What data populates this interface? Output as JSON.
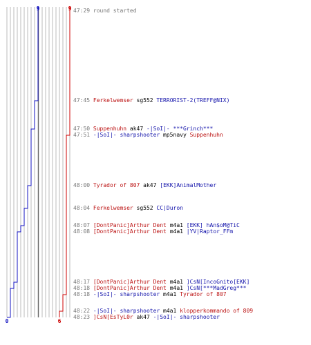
{
  "colors": {
    "ct": "#1010c0",
    "t": "#cc0000",
    "grid": "#bbbbbb",
    "time": "#777777"
  },
  "score": {
    "ct_start": 9,
    "t_start": 9,
    "ct_end": 0,
    "t_end": 6,
    "ct_top_label": "9",
    "t_top_label": "9",
    "ct_bottom_label": "0",
    "t_bottom_label": "6"
  },
  "events": [
    {
      "time": "47:29",
      "parts": [
        {
          "text": "round started",
          "color": "time"
        }
      ]
    },
    {
      "time": "47:45",
      "ct_after": 8,
      "t_after": 9,
      "parts": [
        {
          "text": "Ferkelwemser",
          "color": "red"
        },
        {
          "text": " sg552 ",
          "color": "plain"
        },
        {
          "text": "TERRORIST-2(TREFF@NIX)",
          "color": "blue"
        }
      ]
    },
    {
      "time": "47:50",
      "ct_after": 7,
      "t_after": 9,
      "parts": [
        {
          "text": "Suppenhuhn",
          "color": "red"
        },
        {
          "text": " ak47 ",
          "color": "plain"
        },
        {
          "text": "-|SoI|- ***Grinch***",
          "color": "blue"
        }
      ]
    },
    {
      "time": "47:51",
      "ct_after": 7,
      "t_after": 8,
      "parts": [
        {
          "text": "-|SoI|- sharpshooter",
          "color": "blue"
        },
        {
          "text": " mp5navy ",
          "color": "plain"
        },
        {
          "text": "Suppenhuhn",
          "color": "red"
        }
      ]
    },
    {
      "time": "48:00",
      "ct_after": 6,
      "t_after": 8,
      "parts": [
        {
          "text": "Tyrador of 807",
          "color": "red"
        },
        {
          "text": " ak47 ",
          "color": "plain"
        },
        {
          "text": "[EKK]AnimalMother",
          "color": "blue"
        }
      ]
    },
    {
      "time": "48:04",
      "ct_after": 5,
      "t_after": 8,
      "parts": [
        {
          "text": "Ferkelwemser",
          "color": "red"
        },
        {
          "text": " sg552 ",
          "color": "plain"
        },
        {
          "text": "CC|Duron",
          "color": "blue"
        }
      ]
    },
    {
      "time": "48:07",
      "ct_after": 4,
      "t_after": 8,
      "parts": [
        {
          "text": "[DontPanic]Arthur Dent",
          "color": "red"
        },
        {
          "text": " m4a1 ",
          "color": "plain"
        },
        {
          "text": "[EKK] hAn$oM@TiC",
          "color": "blue"
        }
      ]
    },
    {
      "time": "48:08",
      "ct_after": 3,
      "t_after": 8,
      "parts": [
        {
          "text": "[DontPanic]Arthur Dent",
          "color": "red"
        },
        {
          "text": " m4a1 ",
          "color": "plain"
        },
        {
          "text": "|YV|Raptor_FFm",
          "color": "blue"
        }
      ]
    },
    {
      "time": "48:17",
      "ct_after": 2,
      "t_after": 8,
      "parts": [
        {
          "text": "[DontPanic]Arthur Dent",
          "color": "red"
        },
        {
          "text": " m4a1 ",
          "color": "plain"
        },
        {
          "text": "]CsN[IncoGnito[EKK]",
          "color": "blue"
        }
      ]
    },
    {
      "time": "48:18",
      "ct_after": 1,
      "t_after": 8,
      "parts": [
        {
          "text": "[DontPanic]Arthur Dent",
          "color": "red"
        },
        {
          "text": " m4a1 ",
          "color": "plain"
        },
        {
          "text": "]CsN[***MadGreg***",
          "color": "blue"
        }
      ]
    },
    {
      "time": "48:18",
      "ct_after": 1,
      "t_after": 7,
      "parts": [
        {
          "text": "-|SoI|- sharpshooter",
          "color": "blue"
        },
        {
          "text": " m4a1 ",
          "color": "plain"
        },
        {
          "text": "Tyrador of 807",
          "color": "red"
        }
      ]
    },
    {
      "time": "48:22",
      "ct_after": 1,
      "t_after": 6,
      "parts": [
        {
          "text": "-|SoI|- sharpshooter",
          "color": "blue"
        },
        {
          "text": " m4a1 ",
          "color": "plain"
        },
        {
          "text": "klopperkommando of 809",
          "color": "red"
        }
      ]
    },
    {
      "time": "48:23",
      "ct_after": 0,
      "t_after": 6,
      "parts": [
        {
          "text": "]CsN[EsTyL0r",
          "color": "red"
        },
        {
          "text": " ak47 ",
          "color": "plain"
        },
        {
          "text": "-|SoI|- sharpshooter",
          "color": "blue"
        }
      ]
    }
  ]
}
